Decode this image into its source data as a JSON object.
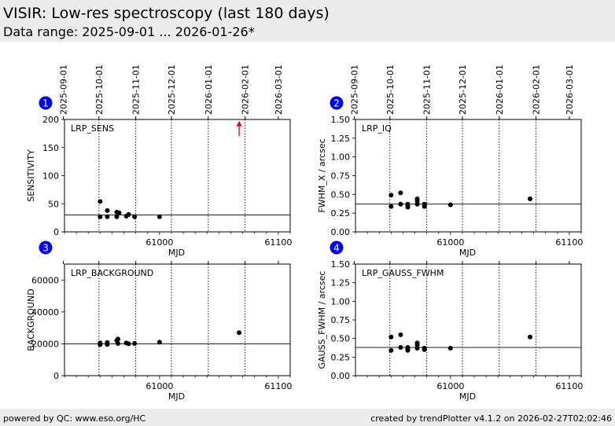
{
  "header": {
    "title": "VISIR: Low-res spectroscopy (last 180 days)",
    "subtitle": "Data range: 2025-09-01 ... 2026-01-26*"
  },
  "footer": {
    "left": "powered by QC: www.eso.org/HC",
    "right": "created by trendPlotter v4.1.2 on 2026-02-27T02:02:46"
  },
  "colors": {
    "marker": "#000000",
    "badge": "#0000ee",
    "outlier": "#ee0000",
    "header_bg": "#ececec"
  },
  "chart_data": [
    {
      "type": "scatter",
      "panel_number": "1",
      "name": "LRP_SENS",
      "ylabel": "SENSITIVITY",
      "xlabel": "MJD",
      "xlim": [
        60920,
        61110
      ],
      "ylim": [
        0,
        200
      ],
      "yticks": [
        "0",
        "50",
        "100",
        "150",
        "200"
      ],
      "ytick_values": [
        0,
        50,
        100,
        150,
        200
      ],
      "xtick_labels": [
        "61000",
        "61100"
      ],
      "xtick_values": [
        61000,
        61100
      ],
      "date_ticks": [
        "2025-09-01",
        "2025-10-01",
        "2025-11-01",
        "2025-12-01",
        "2026-01-01",
        "2026-02-01",
        "2026-03-01"
      ],
      "date_tick_mjd": [
        60919,
        60949,
        60980,
        61010,
        61041,
        61072,
        61100
      ],
      "month_lines": [
        60949,
        60980,
        61010,
        61041,
        61072
      ],
      "reference": 30,
      "x": [
        60950,
        60950,
        60956,
        60956,
        60964,
        60964,
        60966,
        60972,
        60974,
        60979,
        61000
      ],
      "y": [
        54,
        27,
        38,
        27,
        35,
        27,
        34,
        28,
        31,
        27,
        27
      ],
      "outlier_arrow": {
        "x": 61067,
        "y_from": 170,
        "y_to": 195
      }
    },
    {
      "type": "scatter",
      "panel_number": "2",
      "name": "LRP_IQ",
      "ylabel": "FWHM_X / arcsec",
      "xlabel": "MJD",
      "xlim": [
        60920,
        61110
      ],
      "ylim": [
        0,
        1.5
      ],
      "yticks": [
        "0.00",
        "0.25",
        "0.50",
        "0.75",
        "1.00",
        "1.25",
        "1.50"
      ],
      "ytick_values": [
        0,
        0.25,
        0.5,
        0.75,
        1.0,
        1.25,
        1.5
      ],
      "xtick_labels": [
        "61000",
        "61100"
      ],
      "xtick_values": [
        61000,
        61100
      ],
      "date_ticks": [
        "2025-09-01",
        "2025-10-01",
        "2025-11-01",
        "2025-12-01",
        "2026-01-01",
        "2026-02-01",
        "2026-03-01"
      ],
      "date_tick_mjd": [
        60919,
        60949,
        60980,
        61010,
        61041,
        61072,
        61100
      ],
      "month_lines": [
        60949,
        60980,
        61010,
        61041,
        61072
      ],
      "reference": 0.37,
      "x": [
        60950,
        60950,
        60958,
        60958,
        60964,
        60964,
        60964,
        60972,
        60972,
        60972,
        60978,
        60978,
        61000,
        61067
      ],
      "y": [
        0.49,
        0.34,
        0.52,
        0.37,
        0.37,
        0.35,
        0.33,
        0.44,
        0.41,
        0.37,
        0.37,
        0.34,
        0.36,
        0.44
      ]
    },
    {
      "type": "scatter",
      "panel_number": "3",
      "name": "LRP_BACKGROUND",
      "ylabel": "BACKGROUND",
      "xlabel": "MJD",
      "xlim": [
        60920,
        61110
      ],
      "ylim": [
        0,
        70000
      ],
      "yticks": [
        "0",
        "20000",
        "40000",
        "60000"
      ],
      "ytick_values": [
        0,
        20000,
        40000,
        60000
      ],
      "xtick_labels": [
        "61000",
        "61100"
      ],
      "xtick_values": [
        61000,
        61100
      ],
      "date_ticks": [],
      "date_tick_mjd": [
        60919,
        60949,
        60980,
        61010,
        61041,
        61072,
        61100
      ],
      "month_lines": [
        60949,
        60980,
        61010,
        61041,
        61072
      ],
      "reference": 20000,
      "x": [
        60950,
        60950,
        60956,
        60956,
        60964,
        60965,
        60965,
        60972,
        60974,
        60979,
        61000,
        61067
      ],
      "y": [
        19500,
        20500,
        19600,
        20800,
        22000,
        23000,
        20200,
        20500,
        20000,
        20200,
        21000,
        27000
      ]
    },
    {
      "type": "scatter",
      "panel_number": "4",
      "name": "LRP_GAUSS_FWHM",
      "ylabel": "GAUSS_FWHM / arcsec",
      "xlabel": "MJD",
      "xlim": [
        60920,
        61110
      ],
      "ylim": [
        0,
        1.5
      ],
      "yticks": [
        "0.00",
        "0.25",
        "0.50",
        "0.75",
        "1.00",
        "1.25",
        "1.50"
      ],
      "ytick_values": [
        0,
        0.25,
        0.5,
        0.75,
        1.0,
        1.25,
        1.5
      ],
      "xtick_labels": [
        "61000",
        "61100"
      ],
      "xtick_values": [
        61000,
        61100
      ],
      "date_ticks": [],
      "date_tick_mjd": [
        60919,
        60949,
        60980,
        61010,
        61041,
        61072,
        61100
      ],
      "month_lines": [
        60949,
        60980,
        61010,
        61041,
        61072
      ],
      "reference": 0.38,
      "x": [
        60950,
        60950,
        60958,
        60958,
        60964,
        60964,
        60964,
        60972,
        60972,
        60972,
        60978,
        60978,
        61000,
        61067
      ],
      "y": [
        0.52,
        0.34,
        0.55,
        0.38,
        0.38,
        0.36,
        0.34,
        0.44,
        0.41,
        0.37,
        0.37,
        0.35,
        0.37,
        0.52
      ]
    }
  ]
}
